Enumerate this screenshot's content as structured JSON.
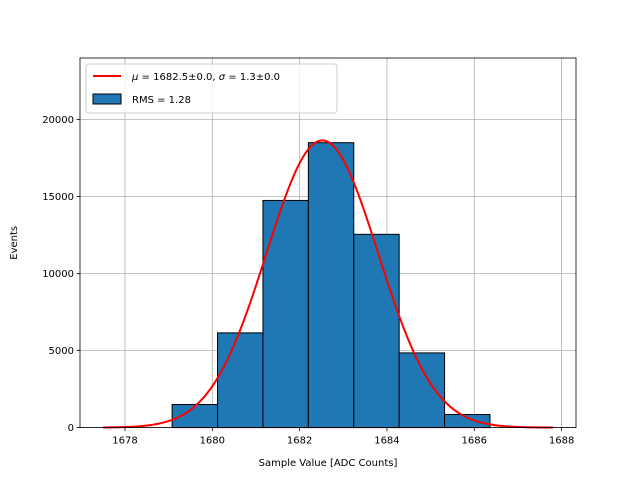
{
  "chart_data": {
    "type": "bar",
    "title": "",
    "xlabel": "Sample Value [ADC Counts]",
    "ylabel": "Events",
    "xlim": [
      1676.97,
      1688.33
    ],
    "ylim": [
      0,
      24000
    ],
    "xticks": [
      1678,
      1680,
      1682,
      1684,
      1686,
      1688
    ],
    "yticks": [
      0,
      5000,
      10000,
      15000,
      20000
    ],
    "grid": true,
    "legend_position": "top-left",
    "histogram": {
      "bin_edges": [
        1679.08,
        1680.12,
        1681.16,
        1682.2,
        1683.24,
        1684.28,
        1685.32,
        1686.36
      ],
      "counts": [
        1500,
        6150,
        14750,
        18500,
        12550,
        4850,
        850
      ],
      "label": "RMS = 1.28",
      "color": "#1f77b4",
      "edgecolor": "#000000"
    },
    "fit": {
      "type": "gaussian",
      "label": "$\\mu = 1682.5 \\pm 0.0$, $\\sigma = 1.3 \\pm 0.0$",
      "label_parts": {
        "mu_value": "1682.5±0.0",
        "sigma_value": "1.3±0.0"
      },
      "mu": 1682.52,
      "sigma": 1.28,
      "amplitude": 18650,
      "x_range": [
        1677.5,
        1687.8
      ],
      "color": "#ff0000"
    }
  }
}
